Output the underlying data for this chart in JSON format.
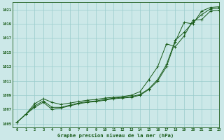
{
  "xlabel": "Graphe pression niveau de la mer (hPa)",
  "background_color": "#cce8e8",
  "grid_color": "#99cccc",
  "line_color": "#1a5c1a",
  "xlim": [
    -0.5,
    23
  ],
  "ylim": [
    1004.5,
    1022.0
  ],
  "yticks": [
    1005,
    1007,
    1009,
    1011,
    1013,
    1015,
    1017,
    1019,
    1021
  ],
  "xticks": [
    0,
    1,
    2,
    3,
    4,
    5,
    6,
    7,
    8,
    9,
    10,
    11,
    12,
    13,
    14,
    15,
    16,
    17,
    18,
    19,
    20,
    21,
    22,
    23
  ],
  "line1": [
    1005.2,
    1006.3,
    1007.3,
    1008.0,
    1007.0,
    1007.2,
    1007.5,
    1007.8,
    1008.0,
    1008.1,
    1008.3,
    1008.5,
    1008.6,
    1008.7,
    1009.0,
    1009.8,
    1011.0,
    1013.0,
    1016.5,
    1019.2,
    1019.0,
    1020.8,
    1021.3,
    1021.4
  ],
  "line2": [
    1005.2,
    1006.3,
    1007.5,
    1008.2,
    1007.3,
    1007.3,
    1007.6,
    1007.9,
    1008.1,
    1008.2,
    1008.4,
    1008.6,
    1008.7,
    1008.8,
    1009.1,
    1009.9,
    1011.2,
    1013.3,
    1016.7,
    1017.8,
    1019.2,
    1020.3,
    1021.1,
    1021.2
  ],
  "line3": [
    1005.2,
    1006.3,
    1007.8,
    1008.5,
    1008.0,
    1007.7,
    1007.9,
    1008.1,
    1008.3,
    1008.4,
    1008.6,
    1008.7,
    1008.8,
    1009.0,
    1009.5,
    1011.2,
    1013.0,
    1016.2,
    1015.8,
    1017.3,
    1019.5,
    1019.6,
    1020.8,
    1020.9
  ]
}
